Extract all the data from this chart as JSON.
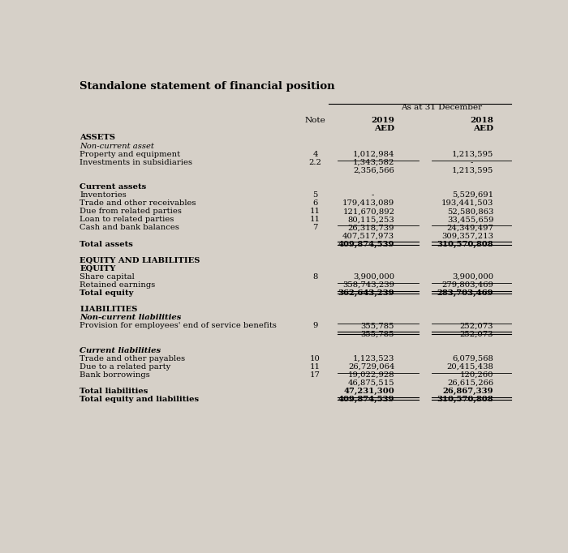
{
  "title": "Standalone statement of financial position",
  "header_label": "As at 31 December",
  "col_note": "Note",
  "col_2019": "2019",
  "col_2018": "2018",
  "col_aed": "AED",
  "bg_color": "#d6d0c8",
  "rows": [
    {
      "label": "ASSETS",
      "note": "",
      "v2019": "",
      "v2018": "",
      "style": "bold",
      "underline": false,
      "double_underline": false
    },
    {
      "label": "Non-current asset",
      "note": "",
      "v2019": "",
      "v2018": "",
      "style": "italic",
      "underline": false,
      "double_underline": false
    },
    {
      "label": "Property and equipment",
      "note": "4",
      "v2019": "1,012,984",
      "v2018": "1,213,595",
      "style": "normal",
      "underline": false,
      "double_underline": false
    },
    {
      "label": "Investments in subsidiaries",
      "note": "2.2",
      "v2019": "1,343,582",
      "v2018": "-",
      "style": "normal",
      "underline": true,
      "double_underline": false
    },
    {
      "label": "",
      "note": "",
      "v2019": "2,356,566",
      "v2018": "1,213,595",
      "style": "normal",
      "underline": false,
      "double_underline": false
    },
    {
      "label": "",
      "note": "",
      "v2019": "",
      "v2018": "",
      "style": "normal",
      "underline": false,
      "double_underline": false
    },
    {
      "label": "Current assets",
      "note": "",
      "v2019": "",
      "v2018": "",
      "style": "bold",
      "underline": false,
      "double_underline": false
    },
    {
      "label": "Inventories",
      "note": "5",
      "v2019": "-",
      "v2018": "5,529,691",
      "style": "normal",
      "underline": false,
      "double_underline": false
    },
    {
      "label": "Trade and other receivables",
      "note": "6",
      "v2019": "179,413,089",
      "v2018": "193,441,503",
      "style": "normal",
      "underline": false,
      "double_underline": false
    },
    {
      "label": "Due from related parties",
      "note": "11",
      "v2019": "121,670,892",
      "v2018": "52,580,863",
      "style": "normal",
      "underline": false,
      "double_underline": false
    },
    {
      "label": "Loan to related parties",
      "note": "11",
      "v2019": "80,115,253",
      "v2018": "33,455,659",
      "style": "normal",
      "underline": false,
      "double_underline": false
    },
    {
      "label": "Cash and bank balances",
      "note": "7",
      "v2019": "26,318,739",
      "v2018": "24,349,497",
      "style": "normal",
      "underline": true,
      "double_underline": false
    },
    {
      "label": "",
      "note": "",
      "v2019": "407,517,973",
      "v2018": "309,357,213",
      "style": "normal",
      "underline": false,
      "double_underline": false
    },
    {
      "label": "Total assets",
      "note": "",
      "v2019": "409,874,539",
      "v2018": "310,570,808",
      "style": "bold",
      "underline": false,
      "double_underline": true
    },
    {
      "label": "",
      "note": "",
      "v2019": "",
      "v2018": "",
      "style": "normal",
      "underline": false,
      "double_underline": false
    },
    {
      "label": "EQUITY AND LIABILITIES",
      "note": "",
      "v2019": "",
      "v2018": "",
      "style": "bold",
      "underline": false,
      "double_underline": false
    },
    {
      "label": "EQUITY",
      "note": "",
      "v2019": "",
      "v2018": "",
      "style": "bold",
      "underline": false,
      "double_underline": false
    },
    {
      "label": "Share capital",
      "note": "8",
      "v2019": "3,900,000",
      "v2018": "3,900,000",
      "style": "normal",
      "underline": false,
      "double_underline": false
    },
    {
      "label": "Retained earnings",
      "note": "",
      "v2019": "358,743,239",
      "v2018": "279,803,469",
      "style": "normal",
      "underline": true,
      "double_underline": false
    },
    {
      "label": "Total equity",
      "note": "",
      "v2019": "362,643,239",
      "v2018": "283,703,469",
      "style": "bold",
      "underline": false,
      "double_underline": true
    },
    {
      "label": "",
      "note": "",
      "v2019": "",
      "v2018": "",
      "style": "normal",
      "underline": false,
      "double_underline": false
    },
    {
      "label": "LIABILITIES",
      "note": "",
      "v2019": "",
      "v2018": "",
      "style": "bold",
      "underline": false,
      "double_underline": false
    },
    {
      "label": "Non-current liabilities",
      "note": "",
      "v2019": "",
      "v2018": "",
      "style": "bold_italic",
      "underline": false,
      "double_underline": false
    },
    {
      "label": "Provision for employees' end of service benefits",
      "note": "9",
      "v2019": "355,785",
      "v2018": "252,073",
      "style": "normal",
      "underline": true,
      "double_underline": false
    },
    {
      "label": "",
      "note": "",
      "v2019": "355,785",
      "v2018": "252,073",
      "style": "normal",
      "underline": false,
      "double_underline": true
    },
    {
      "label": "",
      "note": "",
      "v2019": "",
      "v2018": "",
      "style": "normal",
      "underline": false,
      "double_underline": false
    },
    {
      "label": "Current liabilities",
      "note": "",
      "v2019": "",
      "v2018": "",
      "style": "bold_italic",
      "underline": false,
      "double_underline": false
    },
    {
      "label": "Trade and other payables",
      "note": "10",
      "v2019": "1,123,523",
      "v2018": "6,079,568",
      "style": "normal",
      "underline": false,
      "double_underline": false
    },
    {
      "label": "Due to a related party",
      "note": "11",
      "v2019": "26,729,064",
      "v2018": "20,415,438",
      "style": "normal",
      "underline": false,
      "double_underline": false
    },
    {
      "label": "Bank borrowings",
      "note": "17",
      "v2019": "19,022,928",
      "v2018": "120,260",
      "style": "normal",
      "underline": true,
      "double_underline": false
    },
    {
      "label": "",
      "note": "",
      "v2019": "46,875,515",
      "v2018": "26,615,266",
      "style": "normal",
      "underline": false,
      "double_underline": false
    },
    {
      "label": "Total liabilities",
      "note": "",
      "v2019": "47,231,300",
      "v2018": "26,867,339",
      "style": "bold",
      "underline": false,
      "double_underline": false
    },
    {
      "label": "Total equity and liabilities",
      "note": "",
      "v2019": "409,874,539",
      "v2018": "310,570,808",
      "style": "bold",
      "underline": false,
      "double_underline": true
    }
  ]
}
